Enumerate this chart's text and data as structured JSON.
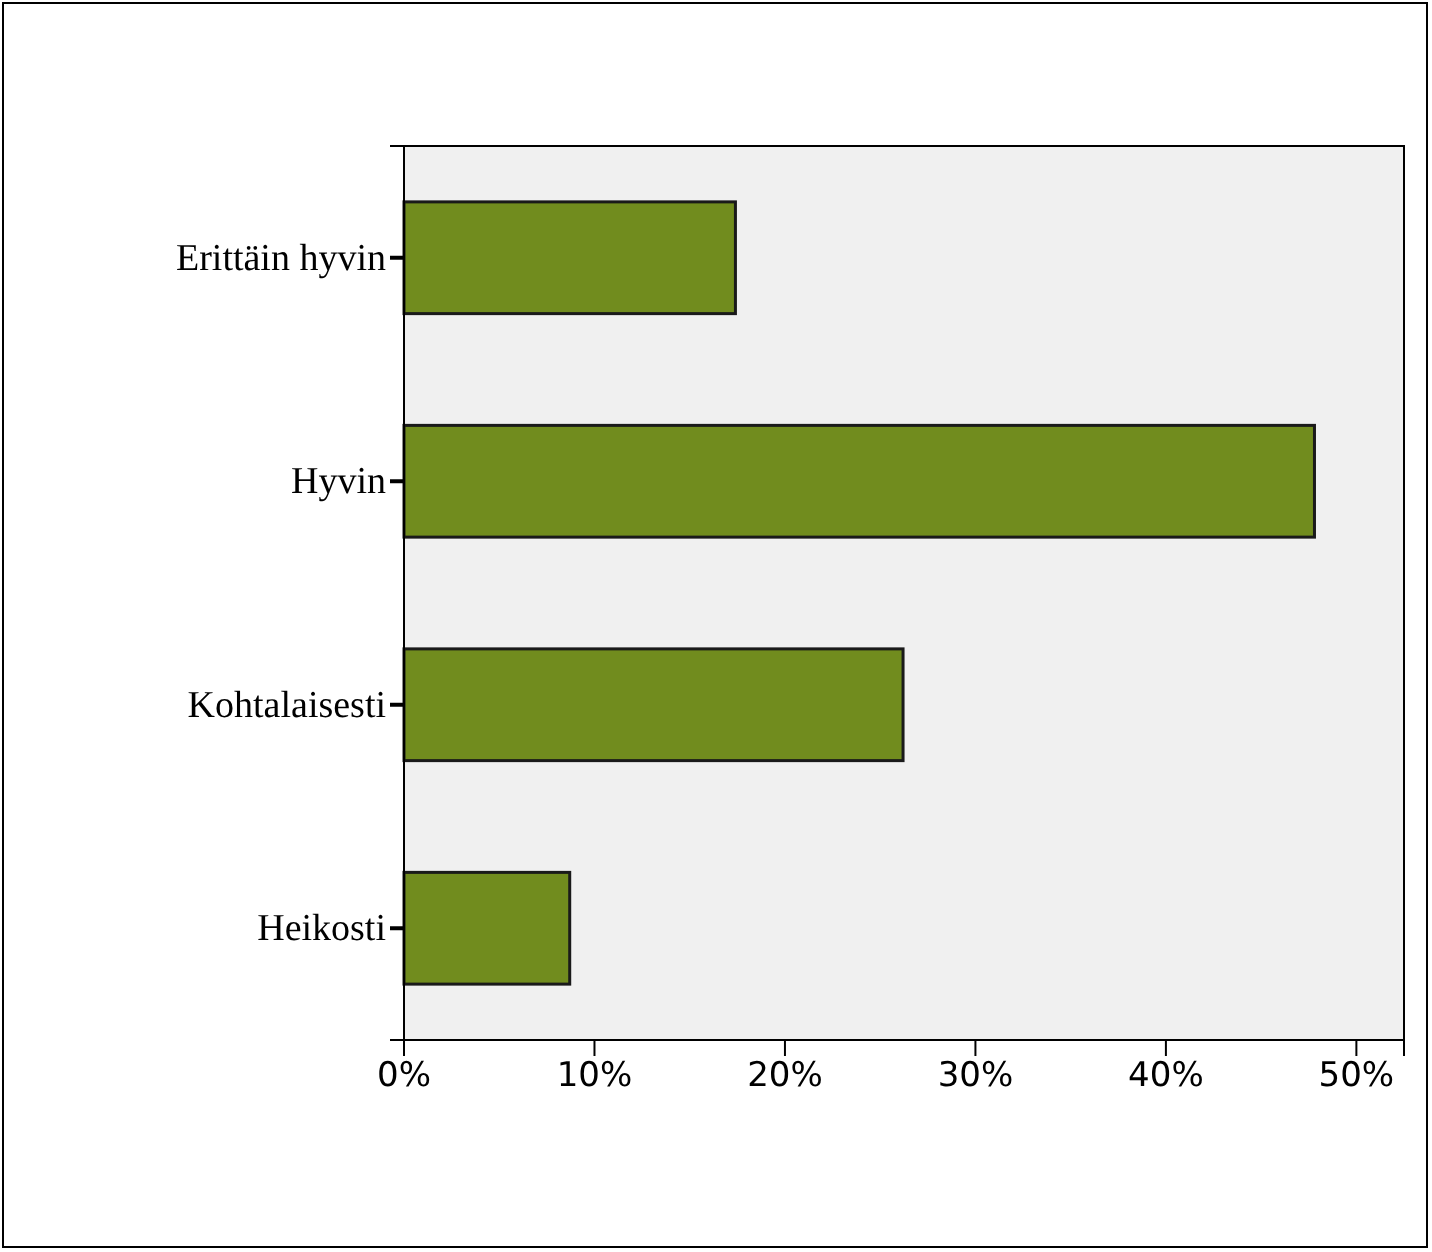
{
  "chart_data": {
    "type": "bar",
    "orientation": "horizontal",
    "categories": [
      "Erittäin hyvin",
      "Hyvin",
      "Kohtalaisesti",
      "Heikosti"
    ],
    "values": [
      17.4,
      47.8,
      26.2,
      8.7
    ],
    "color": "#718c1e",
    "xlim": [
      0,
      52.5
    ],
    "xticks": [
      {
        "value": 0,
        "label": "0%"
      },
      {
        "value": 10,
        "label": "10%"
      },
      {
        "value": 20,
        "label": "20%"
      },
      {
        "value": 30,
        "label": "30%"
      },
      {
        "value": 40,
        "label": "40%"
      },
      {
        "value": 50,
        "label": "50%"
      }
    ],
    "grid": false
  }
}
